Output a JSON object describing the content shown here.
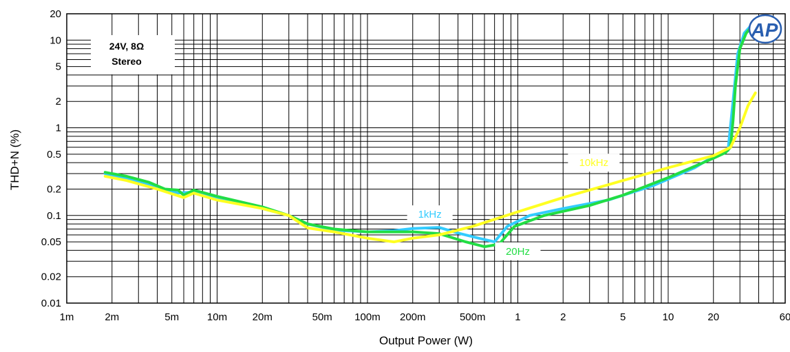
{
  "chart_data": {
    "type": "line",
    "xscale": "log",
    "yscale": "log",
    "xlabel": "Output Power (W)",
    "ylabel": "THD+N (%)",
    "xlim": [
      0.001,
      60
    ],
    "ylim": [
      0.01,
      20
    ],
    "grid": true,
    "x_ticks": [
      {
        "value": 0.001,
        "label": "1m"
      },
      {
        "value": 0.002,
        "label": "2m"
      },
      {
        "value": 0.005,
        "label": "5m"
      },
      {
        "value": 0.01,
        "label": "10m"
      },
      {
        "value": 0.02,
        "label": "20m"
      },
      {
        "value": 0.05,
        "label": "50m"
      },
      {
        "value": 0.1,
        "label": "100m"
      },
      {
        "value": 0.2,
        "label": "200m"
      },
      {
        "value": 0.5,
        "label": "500m"
      },
      {
        "value": 1,
        "label": "1"
      },
      {
        "value": 2,
        "label": "2"
      },
      {
        "value": 5,
        "label": "5"
      },
      {
        "value": 10,
        "label": "10"
      },
      {
        "value": 20,
        "label": "20"
      },
      {
        "value": 60,
        "label": "60"
      }
    ],
    "y_ticks": [
      {
        "value": 0.01,
        "label": "0.01"
      },
      {
        "value": 0.02,
        "label": "0.02"
      },
      {
        "value": 0.05,
        "label": "0.05"
      },
      {
        "value": 0.1,
        "label": "0.1"
      },
      {
        "value": 0.2,
        "label": "0.2"
      },
      {
        "value": 0.5,
        "label": "0.5"
      },
      {
        "value": 1,
        "label": "1"
      },
      {
        "value": 2,
        "label": "2"
      },
      {
        "value": 5,
        "label": "5"
      },
      {
        "value": 10,
        "label": "10"
      },
      {
        "value": 20,
        "label": "20"
      }
    ],
    "annotation_box": {
      "line1": "24V, 8Ω",
      "line2": "Stereo"
    },
    "logo": "AP",
    "series": [
      {
        "name": "1kHz",
        "color": "#33ccff",
        "label_at": [
          0.26,
          0.103
        ],
        "points": [
          [
            0.0018,
            0.3
          ],
          [
            0.0025,
            0.26
          ],
          [
            0.004,
            0.21
          ],
          [
            0.0055,
            0.18
          ],
          [
            0.007,
            0.185
          ],
          [
            0.01,
            0.16
          ],
          [
            0.02,
            0.12
          ],
          [
            0.03,
            0.1
          ],
          [
            0.04,
            0.08
          ],
          [
            0.06,
            0.068
          ],
          [
            0.1,
            0.065
          ],
          [
            0.15,
            0.067
          ],
          [
            0.2,
            0.071
          ],
          [
            0.3,
            0.073
          ],
          [
            0.4,
            0.063
          ],
          [
            0.55,
            0.055
          ],
          [
            0.7,
            0.05
          ],
          [
            0.85,
            0.075
          ],
          [
            1.2,
            0.1
          ],
          [
            2,
            0.12
          ],
          [
            4,
            0.15
          ],
          [
            8,
            0.22
          ],
          [
            15,
            0.35
          ],
          [
            22,
            0.52
          ],
          [
            25,
            0.55
          ],
          [
            27,
            2.0
          ],
          [
            29,
            7.0
          ],
          [
            32,
            12.0
          ],
          [
            36,
            15.0
          ]
        ]
      },
      {
        "name": "20Hz",
        "color": "#22dd44",
        "label_at": [
          1.0,
          0.039
        ],
        "points": [
          [
            0.0018,
            0.31
          ],
          [
            0.0025,
            0.28
          ],
          [
            0.0035,
            0.24
          ],
          [
            0.0045,
            0.2
          ],
          [
            0.0055,
            0.195
          ],
          [
            0.006,
            0.17
          ],
          [
            0.007,
            0.195
          ],
          [
            0.01,
            0.165
          ],
          [
            0.02,
            0.125
          ],
          [
            0.03,
            0.1
          ],
          [
            0.04,
            0.08
          ],
          [
            0.06,
            0.07
          ],
          [
            0.1,
            0.065
          ],
          [
            0.2,
            0.065
          ],
          [
            0.3,
            0.062
          ],
          [
            0.45,
            0.05
          ],
          [
            0.6,
            0.044
          ],
          [
            0.75,
            0.047
          ],
          [
            0.95,
            0.075
          ],
          [
            1.5,
            0.1
          ],
          [
            3,
            0.13
          ],
          [
            5,
            0.17
          ],
          [
            10,
            0.27
          ],
          [
            20,
            0.45
          ],
          [
            24,
            0.52
          ],
          [
            26,
            0.6
          ],
          [
            27,
            1.2
          ],
          [
            28,
            3.0
          ],
          [
            30,
            8.0
          ],
          [
            33,
            12.0
          ],
          [
            38,
            16.0
          ]
        ]
      },
      {
        "name": "10kHz",
        "color": "#ffff22",
        "label_at": [
          3.2,
          0.4
        ],
        "points": [
          [
            0.0018,
            0.28
          ],
          [
            0.0025,
            0.25
          ],
          [
            0.004,
            0.2
          ],
          [
            0.006,
            0.16
          ],
          [
            0.007,
            0.18
          ],
          [
            0.01,
            0.15
          ],
          [
            0.02,
            0.12
          ],
          [
            0.03,
            0.1
          ],
          [
            0.04,
            0.072
          ],
          [
            0.06,
            0.065
          ],
          [
            0.1,
            0.055
          ],
          [
            0.15,
            0.05
          ],
          [
            0.2,
            0.055
          ],
          [
            0.3,
            0.06
          ],
          [
            0.5,
            0.075
          ],
          [
            1,
            0.11
          ],
          [
            2,
            0.16
          ],
          [
            5,
            0.25
          ],
          [
            10,
            0.35
          ],
          [
            20,
            0.48
          ],
          [
            26,
            0.6
          ],
          [
            30,
            1.0
          ],
          [
            34,
            1.8
          ],
          [
            38,
            2.5
          ]
        ]
      }
    ]
  }
}
